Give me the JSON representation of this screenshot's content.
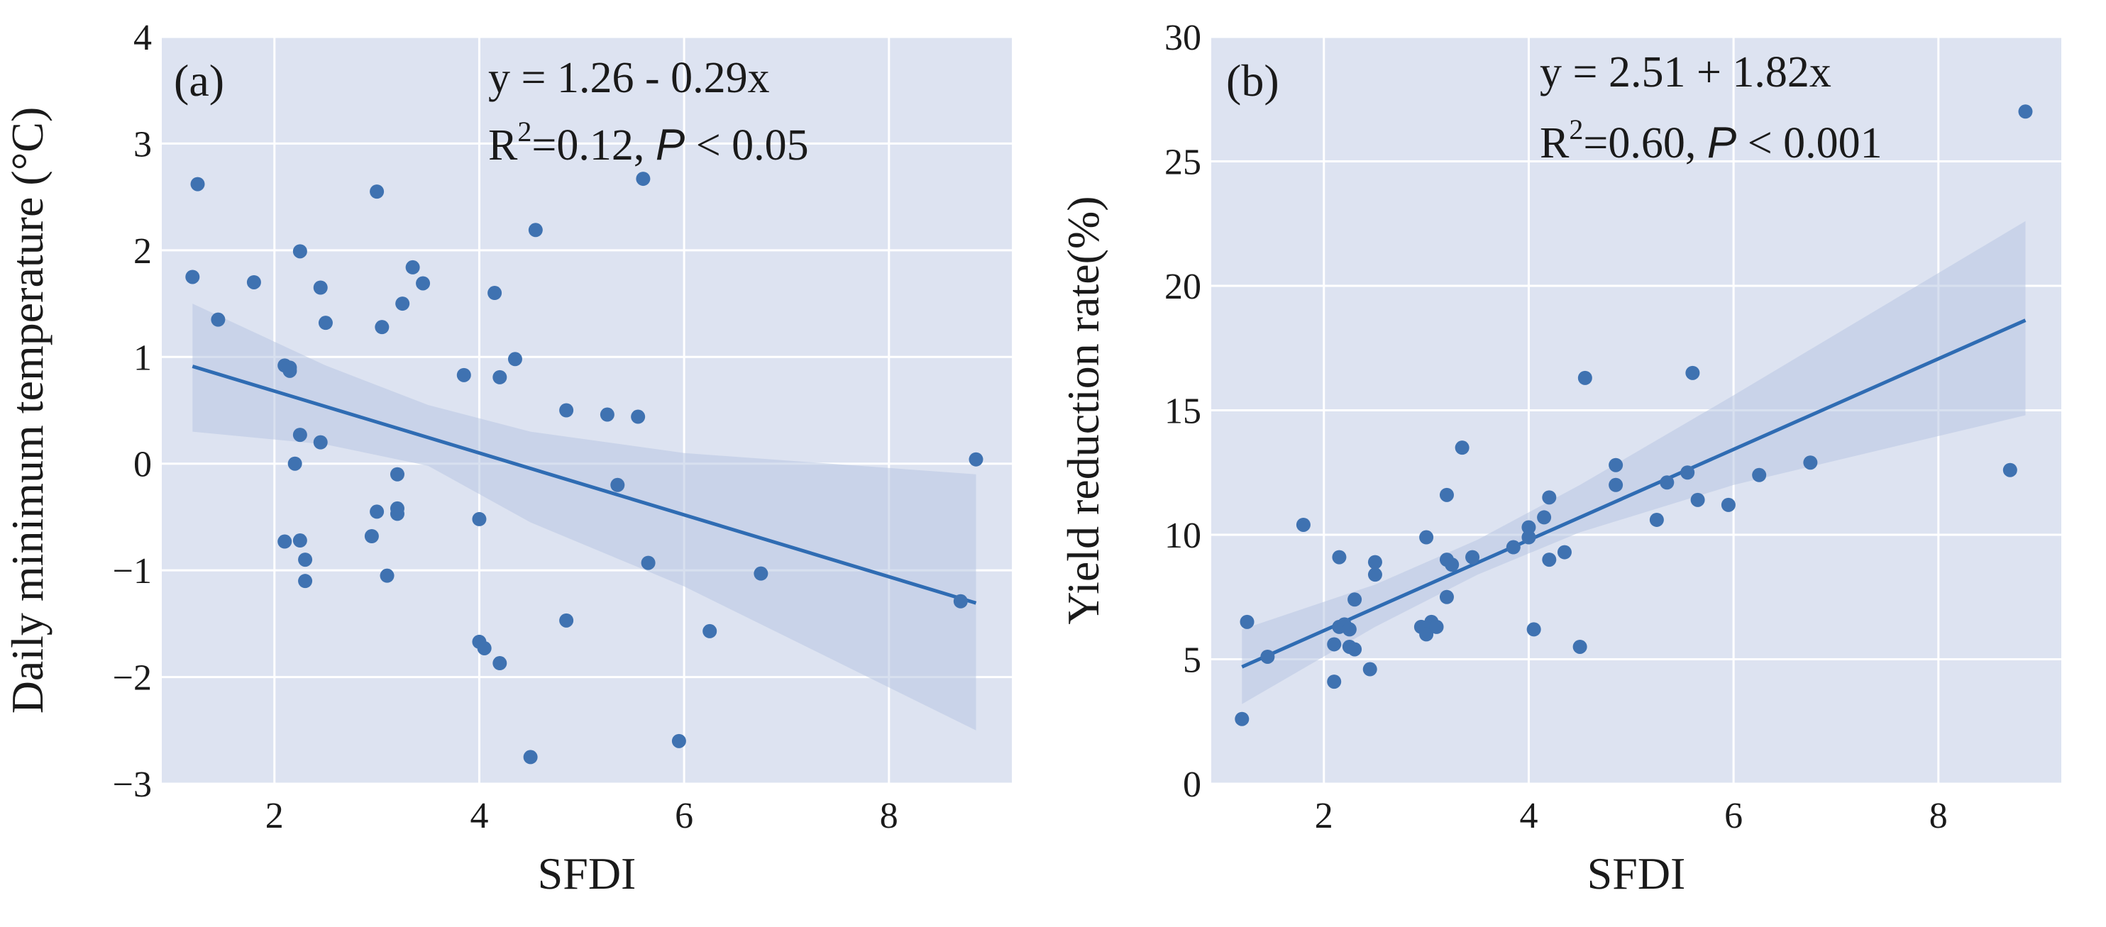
{
  "colors": {
    "panel_bg": "#dde3f1",
    "grid": "#ffffff",
    "point": "#3f72b1",
    "line": "#2f6cb3",
    "band": "#b8c6e2"
  },
  "chart_data": [
    {
      "type": "scatter",
      "panel_label": "(a)",
      "equation": "y = 1.26 - 0.29x",
      "stats_prefix": "R",
      "stats_sup": "2",
      "stats_r2": "=0.12, ",
      "stats_p_symbol": "P",
      "stats_p_value": " < 0.05",
      "xlabel": "SFDI",
      "ylabel": "Daily minimum temperature (°C)",
      "xlim": [
        0.9,
        9.2
      ],
      "ylim": [
        -3,
        4
      ],
      "xticks": [
        2,
        4,
        6,
        8
      ],
      "xtick_labels": [
        "2",
        "4",
        "6",
        "8"
      ],
      "yticks": [
        -3,
        -2,
        -1,
        0,
        1,
        2,
        3,
        4
      ],
      "ytick_labels": [
        "−3",
        "−2",
        "−1",
        "0",
        "1",
        "2",
        "3",
        "4"
      ],
      "fit": {
        "intercept": 1.26,
        "slope": -0.29,
        "x_range": [
          1.2,
          8.85
        ]
      },
      "ci_band": [
        {
          "x": 1.2,
          "lo": 0.3,
          "hi": 1.5
        },
        {
          "x": 2.5,
          "lo": 0.18,
          "hi": 0.92
        },
        {
          "x": 3.5,
          "lo": -0.02,
          "hi": 0.55
        },
        {
          "x": 4.5,
          "lo": -0.55,
          "hi": 0.3
        },
        {
          "x": 6.0,
          "lo": -1.15,
          "hi": 0.1
        },
        {
          "x": 8.85,
          "lo": -2.5,
          "hi": -0.1
        }
      ],
      "points": {
        "x": [
          1.2,
          1.25,
          1.45,
          1.8,
          2.1,
          2.15,
          2.1,
          2.2,
          2.15,
          2.25,
          2.25,
          2.25,
          2.3,
          2.3,
          2.45,
          2.45,
          2.5,
          2.95,
          3.0,
          3.0,
          3.05,
          3.1,
          3.2,
          3.2,
          3.2,
          3.25,
          3.35,
          3.45,
          3.85,
          4.0,
          4.0,
          4.05,
          4.15,
          4.2,
          4.2,
          4.35,
          4.5,
          4.55,
          4.85,
          4.85,
          5.25,
          5.35,
          5.55,
          5.6,
          5.65,
          5.95,
          6.25,
          6.75,
          8.7,
          8.85
        ],
        "y": [
          1.75,
          2.62,
          1.35,
          1.7,
          0.92,
          0.9,
          -0.73,
          0.0,
          0.87,
          1.99,
          0.27,
          -0.72,
          -0.9,
          -1.1,
          0.2,
          1.65,
          1.32,
          -0.68,
          2.55,
          -0.45,
          1.28,
          -1.05,
          -0.47,
          -0.42,
          -0.1,
          1.5,
          1.84,
          1.69,
          0.83,
          -0.52,
          -1.67,
          -1.73,
          1.6,
          -1.87,
          0.81,
          0.98,
          -2.75,
          2.19,
          0.5,
          -1.47,
          0.46,
          -0.2,
          0.44,
          2.67,
          -0.93,
          -2.6,
          -1.57,
          -1.03,
          -1.29,
          0.04
        ]
      }
    },
    {
      "type": "scatter",
      "panel_label": "(b)",
      "equation": "y = 2.51 + 1.82x",
      "stats_prefix": "R",
      "stats_sup": "2",
      "stats_r2": "=0.60, ",
      "stats_p_symbol": "P",
      "stats_p_value": " < 0.001",
      "xlabel": "SFDI",
      "ylabel": "Yield reduction rate(%)",
      "xlim": [
        0.9,
        9.2
      ],
      "ylim": [
        0,
        30
      ],
      "xticks": [
        2,
        4,
        6,
        8
      ],
      "xtick_labels": [
        "2",
        "4",
        "6",
        "8"
      ],
      "yticks": [
        0,
        5,
        10,
        15,
        20,
        25,
        30
      ],
      "ytick_labels": [
        "0",
        "5",
        "10",
        "15",
        "20",
        "25",
        "30"
      ],
      "fit": {
        "intercept": 2.51,
        "slope": 1.82,
        "x_range": [
          1.2,
          8.85
        ]
      },
      "ci_band": [
        {
          "x": 1.2,
          "lo": 3.2,
          "hi": 6.2
        },
        {
          "x": 2.5,
          "lo": 6.3,
          "hi": 8.0
        },
        {
          "x": 3.5,
          "lo": 8.4,
          "hi": 9.8
        },
        {
          "x": 4.5,
          "lo": 10.1,
          "hi": 12.0
        },
        {
          "x": 6.0,
          "lo": 12.0,
          "hi": 15.6
        },
        {
          "x": 8.85,
          "lo": 14.8,
          "hi": 22.6
        }
      ],
      "points": {
        "x": [
          1.2,
          1.25,
          1.45,
          1.8,
          2.1,
          2.1,
          2.15,
          2.15,
          2.2,
          2.25,
          2.25,
          2.3,
          2.3,
          2.45,
          2.5,
          2.5,
          2.95,
          3.0,
          3.0,
          3.05,
          3.1,
          3.2,
          3.2,
          3.2,
          3.25,
          3.35,
          3.45,
          3.85,
          4.0,
          4.0,
          4.05,
          4.15,
          4.2,
          4.2,
          4.35,
          4.5,
          4.55,
          4.85,
          4.85,
          5.25,
          5.35,
          5.55,
          5.6,
          5.65,
          5.95,
          6.25,
          6.75,
          8.7,
          8.85
        ],
        "y": [
          2.6,
          6.5,
          5.1,
          10.4,
          4.1,
          5.6,
          9.1,
          6.3,
          6.4,
          6.2,
          5.5,
          5.4,
          7.4,
          4.6,
          8.4,
          8.9,
          6.3,
          6.0,
          9.9,
          6.5,
          6.3,
          11.6,
          9.0,
          7.5,
          8.8,
          13.5,
          9.1,
          9.5,
          9.9,
          10.3,
          6.2,
          10.7,
          9.0,
          11.5,
          9.3,
          5.5,
          16.3,
          12.0,
          12.8,
          10.6,
          12.1,
          12.5,
          16.5,
          11.4,
          11.2,
          12.4,
          12.9,
          12.6,
          27.0
        ]
      }
    }
  ]
}
